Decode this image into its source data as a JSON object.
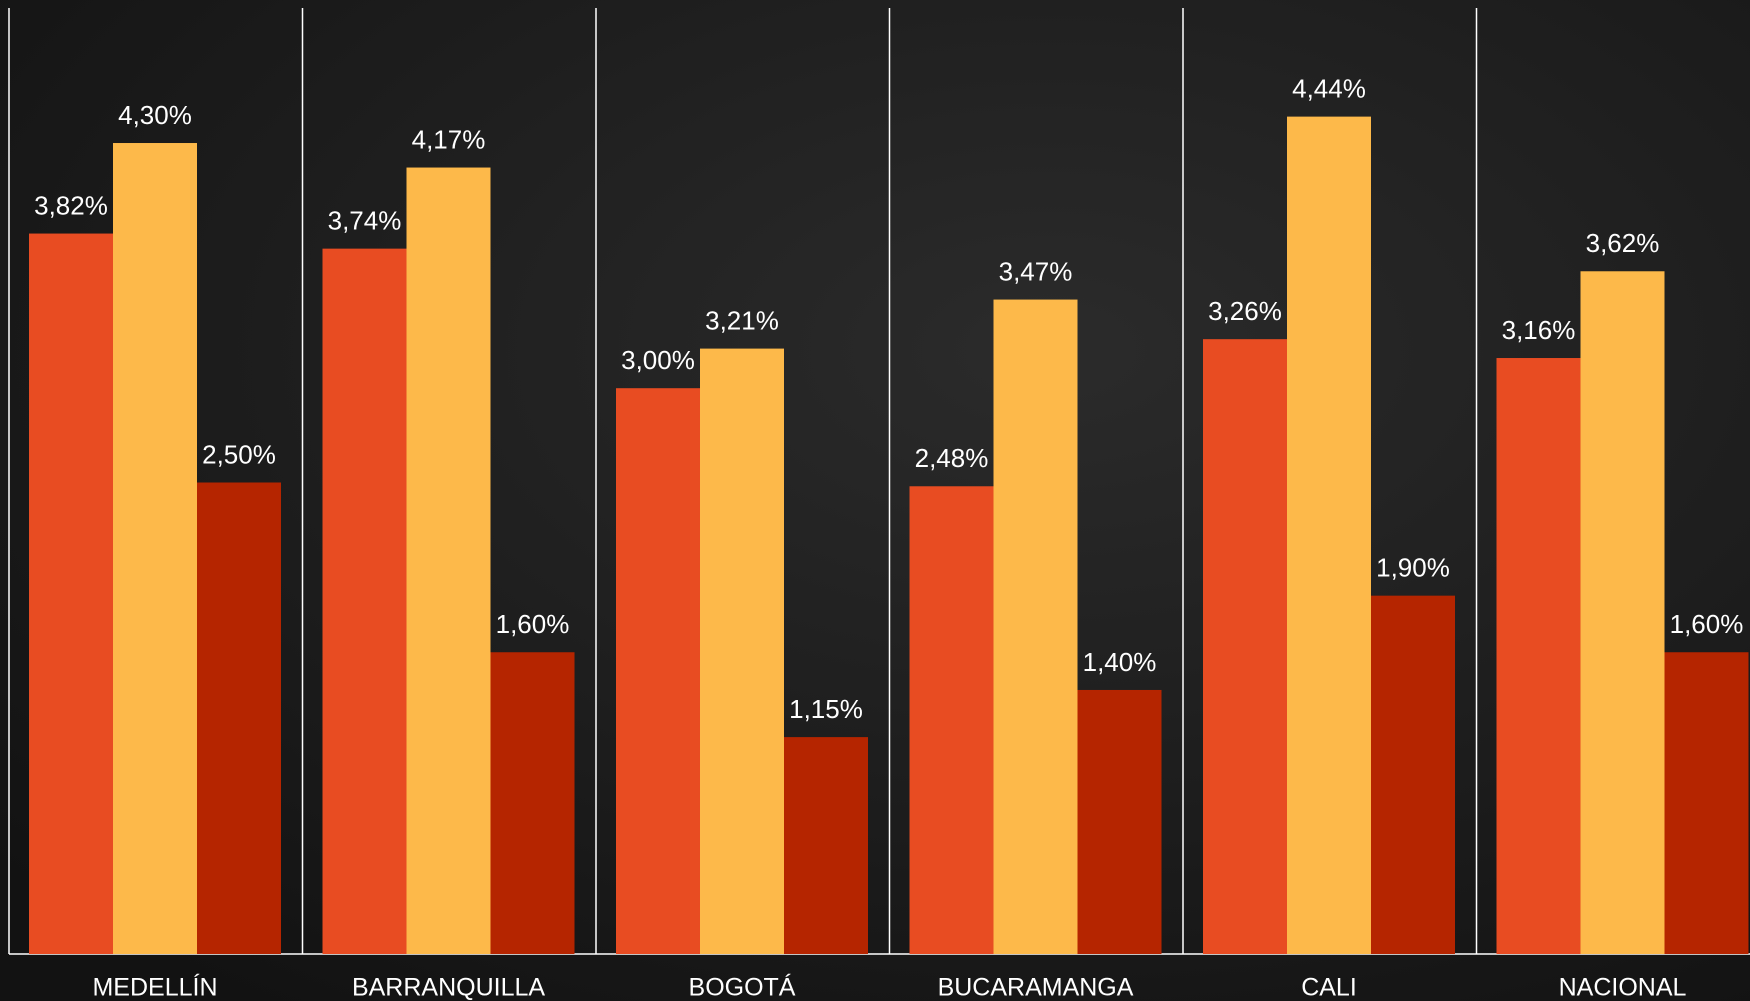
{
  "chart_data": {
    "type": "bar",
    "categories": [
      "MEDELLÍN",
      "BARRANQUILLA",
      "BOGOTÁ",
      "BUCARAMANGA",
      "CALI",
      "NACIONAL"
    ],
    "series": [
      {
        "color": "#e84c22",
        "values": [
          3.82,
          3.74,
          3.0,
          2.48,
          3.26,
          3.16
        ],
        "value_labels": [
          "3,82%",
          "3,74%",
          "3,00%",
          "2,48%",
          "3,26%",
          "3,16%"
        ]
      },
      {
        "color": "#fdb94a",
        "values": [
          4.3,
          4.17,
          3.21,
          3.47,
          4.44,
          3.62
        ],
        "value_labels": [
          "4,30%",
          "4,17%",
          "3,21%",
          "3,47%",
          "4,44%",
          "3,62%"
        ]
      },
      {
        "color": "#b52500",
        "values": [
          2.5,
          1.6,
          1.15,
          1.4,
          1.9,
          1.6
        ],
        "value_labels": [
          "2,50%",
          "1,60%",
          "1,15%",
          "1,40%",
          "1,90%",
          "1,60%"
        ]
      }
    ],
    "ylim": [
      0,
      5
    ]
  }
}
